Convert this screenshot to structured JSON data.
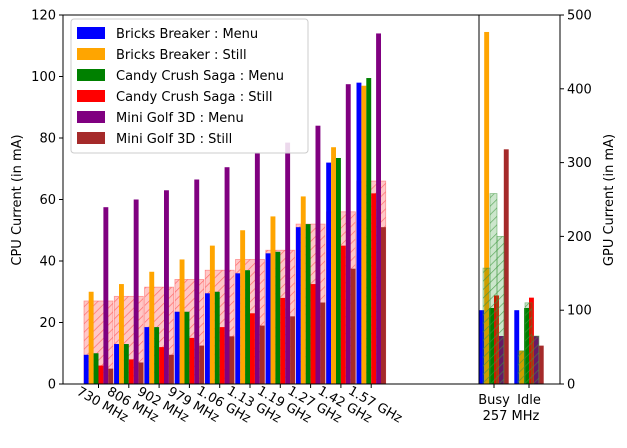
{
  "chart_data": {
    "type": "bar",
    "categories": [
      "730 MHz",
      "806 MHz",
      "902 MHz",
      "979 MHz",
      "1.06 GHz",
      "1.13 GHz",
      "1.19 GHz",
      "1.27 GHz",
      "1.42 GHz",
      "1.57 GHz"
    ],
    "ylabel": "CPU Current (in mA)",
    "ylim": [
      0,
      120
    ],
    "yticks": [
      0,
      20,
      40,
      60,
      80,
      100,
      120
    ],
    "y2label": "GPU Current (in mA)",
    "y2lim": [
      0,
      500
    ],
    "y2ticks": [
      0,
      100,
      200,
      300,
      400,
      500
    ],
    "gpu_categories": [
      "Busy\n257 MHz",
      "Idle"
    ],
    "legend_position": "upper-left",
    "series": [
      {
        "name": "Bricks Breaker : Menu",
        "color": "#0000ff",
        "values": [
          9.5,
          13,
          18.5,
          23.5,
          29.5,
          36,
          42.5,
          51,
          72,
          98
        ],
        "gpu_values": [
          100,
          100
        ]
      },
      {
        "name": "Bricks Breaker : Still",
        "color": "#ffa500",
        "values": [
          30,
          32.5,
          36.5,
          40.5,
          45,
          50,
          54.5,
          61,
          77,
          97
        ],
        "gpu_values": [
          477,
          45
        ]
      },
      {
        "name": "Candy Crush Saga : Menu",
        "color": "#008000",
        "values": [
          10,
          13,
          18.5,
          23.5,
          30,
          37,
          43,
          52,
          73.5,
          99.5
        ],
        "gpu_values": [
          103,
          103
        ]
      },
      {
        "name": "Candy Crush Saga : Still",
        "color": "#ff0000",
        "values": [
          6,
          8,
          12,
          15,
          18.5,
          23,
          28,
          32.5,
          45,
          62
        ],
        "gpu_values": [
          120,
          117
        ]
      },
      {
        "name": "Mini Golf 3D : Menu",
        "color": "#800080",
        "values": [
          57.5,
          60,
          63,
          66.5,
          70.5,
          75,
          78.5,
          84,
          97.5,
          114
        ],
        "gpu_values": [
          65,
          65
        ]
      },
      {
        "name": "Mini Golf 3D : Still",
        "color": "#a52a2a",
        "values": [
          5,
          7,
          9.5,
          12.5,
          15.5,
          19,
          22,
          26.5,
          37.5,
          51
        ],
        "gpu_values": [
          318,
          52
        ]
      }
    ],
    "hatched_cpu_overlay": [
      27,
      28.5,
      31.5,
      34,
      37,
      40.5,
      43.5,
      52,
      56,
      66
    ],
    "hatched_gpu_overlay": [
      {
        "group": "Busy\n257 MHz",
        "values": [
          157,
          258,
          200
        ]
      },
      {
        "group": "Idle",
        "values": [
          45,
          110,
          65
        ]
      }
    ]
  }
}
